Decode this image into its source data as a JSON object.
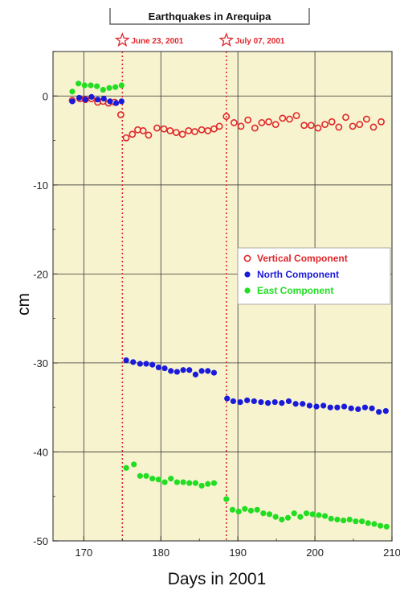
{
  "chart_data": {
    "type": "scatter",
    "title": "Earthquakes in Arequipa",
    "xlabel": "Days in 2001",
    "ylabel": "cm",
    "xlim": [
      166,
      210
    ],
    "ylim": [
      -50,
      5
    ],
    "xticks": [
      "170",
      "180",
      "190",
      "200",
      "210"
    ],
    "yticks": [
      "0",
      "-10",
      "-20",
      "-30",
      "-40",
      "-50"
    ],
    "grid": true,
    "background": "#f8f3cf",
    "legend_position": "right",
    "events": [
      {
        "label": "June 23, 2001",
        "day": 175,
        "color": "#e0262a"
      },
      {
        "label": "July 07, 2001",
        "day": 188.5,
        "color": "#e0262a"
      }
    ],
    "series": [
      {
        "name": "Vertical Component",
        "color": "#e0262a",
        "marker": "open-circle",
        "points": [
          [
            168.5,
            -0.5
          ],
          [
            169.5,
            -0.3
          ],
          [
            170.2,
            -0.4
          ],
          [
            171,
            -0.3
          ],
          [
            171.8,
            -0.7
          ],
          [
            172.5,
            -0.6
          ],
          [
            173.2,
            -0.8
          ],
          [
            174,
            -0.7
          ],
          [
            174.8,
            -2.1
          ],
          [
            175.5,
            -4.7
          ],
          [
            176.3,
            -4.3
          ],
          [
            177,
            -3.8
          ],
          [
            177.7,
            -3.9
          ],
          [
            178.4,
            -4.4
          ],
          [
            179.5,
            -3.6
          ],
          [
            180.4,
            -3.7
          ],
          [
            181.2,
            -3.9
          ],
          [
            182,
            -4.1
          ],
          [
            182.8,
            -4.3
          ],
          [
            183.6,
            -3.9
          ],
          [
            184.4,
            -4.0
          ],
          [
            185.3,
            -3.8
          ],
          [
            186.1,
            -3.9
          ],
          [
            186.9,
            -3.7
          ],
          [
            187.6,
            -3.4
          ],
          [
            188.5,
            -2.3
          ],
          [
            189.5,
            -3.0
          ],
          [
            190.4,
            -3.4
          ],
          [
            191.3,
            -2.7
          ],
          [
            192.2,
            -3.6
          ],
          [
            193.1,
            -3.0
          ],
          [
            194,
            -2.9
          ],
          [
            194.9,
            -3.2
          ],
          [
            195.8,
            -2.5
          ],
          [
            196.7,
            -2.6
          ],
          [
            197.6,
            -2.2
          ],
          [
            198.6,
            -3.3
          ],
          [
            199.5,
            -3.3
          ],
          [
            200.4,
            -3.6
          ],
          [
            201.3,
            -3.2
          ],
          [
            202.2,
            -2.9
          ],
          [
            203.1,
            -3.5
          ],
          [
            204,
            -2.4
          ],
          [
            204.9,
            -3.4
          ],
          [
            205.8,
            -3.2
          ],
          [
            206.7,
            -2.6
          ],
          [
            207.6,
            -3.5
          ],
          [
            208.6,
            -2.9
          ]
        ]
      },
      {
        "name": "North Component",
        "color": "#1a1adb",
        "marker": "filled-circle",
        "points": [
          [
            168.5,
            -0.6
          ],
          [
            169.4,
            -0.2
          ],
          [
            170.2,
            -0.4
          ],
          [
            171,
            -0.1
          ],
          [
            171.8,
            -0.4
          ],
          [
            172.6,
            -0.3
          ],
          [
            173.4,
            -0.6
          ],
          [
            174.2,
            -0.8
          ],
          [
            174.9,
            -0.6
          ],
          [
            175.5,
            -29.7
          ],
          [
            176.4,
            -29.9
          ],
          [
            177.3,
            -30.1
          ],
          [
            178.1,
            -30.1
          ],
          [
            178.9,
            -30.2
          ],
          [
            179.7,
            -30.5
          ],
          [
            180.5,
            -30.6
          ],
          [
            181.3,
            -30.9
          ],
          [
            182.1,
            -31.0
          ],
          [
            182.9,
            -30.8
          ],
          [
            183.7,
            -30.8
          ],
          [
            184.5,
            -31.3
          ],
          [
            185.3,
            -30.9
          ],
          [
            186.1,
            -30.9
          ],
          [
            186.9,
            -31.1
          ],
          [
            188.6,
            -34.0
          ],
          [
            189.4,
            -34.3
          ],
          [
            190.3,
            -34.4
          ],
          [
            191.2,
            -34.2
          ],
          [
            192.1,
            -34.3
          ],
          [
            193,
            -34.4
          ],
          [
            193.9,
            -34.5
          ],
          [
            194.8,
            -34.4
          ],
          [
            195.7,
            -34.5
          ],
          [
            196.6,
            -34.3
          ],
          [
            197.5,
            -34.6
          ],
          [
            198.4,
            -34.6
          ],
          [
            199.3,
            -34.8
          ],
          [
            200.2,
            -34.9
          ],
          [
            201.1,
            -34.8
          ],
          [
            202,
            -35.0
          ],
          [
            202.9,
            -35.0
          ],
          [
            203.8,
            -34.9
          ],
          [
            204.7,
            -35.1
          ],
          [
            205.6,
            -35.2
          ],
          [
            206.5,
            -35.0
          ],
          [
            207.4,
            -35.1
          ],
          [
            208.3,
            -35.5
          ],
          [
            209.2,
            -35.4
          ]
        ]
      },
      {
        "name": "East Component",
        "color": "#22dd22",
        "marker": "filled-circle",
        "points": [
          [
            168.5,
            0.5
          ],
          [
            169.3,
            1.4
          ],
          [
            170.1,
            1.2
          ],
          [
            170.9,
            1.2
          ],
          [
            171.7,
            1.1
          ],
          [
            172.5,
            0.7
          ],
          [
            173.3,
            0.9
          ],
          [
            174.1,
            1.0
          ],
          [
            174.9,
            1.2
          ],
          [
            175.5,
            -41.8
          ],
          [
            176.5,
            -41.4
          ],
          [
            177.3,
            -42.7
          ],
          [
            178.1,
            -42.7
          ],
          [
            178.9,
            -43.0
          ],
          [
            179.7,
            -43.1
          ],
          [
            180.5,
            -43.4
          ],
          [
            181.3,
            -43.0
          ],
          [
            182.1,
            -43.4
          ],
          [
            182.9,
            -43.4
          ],
          [
            183.7,
            -43.5
          ],
          [
            184.5,
            -43.5
          ],
          [
            185.3,
            -43.8
          ],
          [
            186.1,
            -43.6
          ],
          [
            186.9,
            -43.5
          ],
          [
            188.5,
            -45.3
          ],
          [
            189.3,
            -46.5
          ],
          [
            190.1,
            -46.7
          ],
          [
            190.9,
            -46.4
          ],
          [
            191.7,
            -46.6
          ],
          [
            192.5,
            -46.5
          ],
          [
            193.3,
            -46.9
          ],
          [
            194.1,
            -47.0
          ],
          [
            194.9,
            -47.3
          ],
          [
            195.7,
            -47.6
          ],
          [
            196.5,
            -47.4
          ],
          [
            197.3,
            -46.9
          ],
          [
            198.1,
            -47.3
          ],
          [
            198.9,
            -46.9
          ],
          [
            199.7,
            -47.0
          ],
          [
            200.5,
            -47.1
          ],
          [
            201.3,
            -47.2
          ],
          [
            202.1,
            -47.5
          ],
          [
            202.9,
            -47.6
          ],
          [
            203.7,
            -47.7
          ],
          [
            204.5,
            -47.6
          ],
          [
            205.3,
            -47.8
          ],
          [
            206.1,
            -47.8
          ],
          [
            206.9,
            -48.0
          ],
          [
            207.7,
            -48.1
          ],
          [
            208.5,
            -48.3
          ],
          [
            209.3,
            -48.4
          ]
        ]
      }
    ]
  }
}
